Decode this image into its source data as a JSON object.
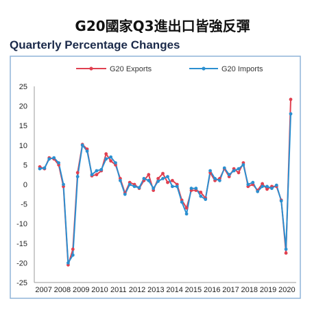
{
  "header": {
    "title": "G20國家Q3進出口皆強反彈",
    "subtitle": "Quarterly Percentage Changes"
  },
  "colors": {
    "exports": "#e04050",
    "imports": "#2b8fd0",
    "frame": "#8fb3d9",
    "grid": "#e3e3e3"
  },
  "chart_data": {
    "type": "line",
    "title": "Quarterly Percentage Changes",
    "xlabel": "",
    "ylabel": "",
    "ylim": [
      -25,
      25
    ],
    "yticks": [
      "25",
      "20",
      "15",
      "10",
      "5",
      "0",
      "-5",
      "-10",
      "-15",
      "-20",
      "-25"
    ],
    "xticks": [
      "2007",
      "2008",
      "2009",
      "2010",
      "2011",
      "2012",
      "2013",
      "2014",
      "2015",
      "2016",
      "2017",
      "2018",
      "2019",
      "2020"
    ],
    "legend_position": "top",
    "grid": false,
    "series": [
      {
        "name": "G20 Exports",
        "values": [
          4.5,
          4.0,
          6.8,
          6.5,
          5.0,
          -0.5,
          -20.5,
          -16.5,
          3.0,
          10.2,
          9.0,
          2.2,
          2.5,
          3.5,
          7.8,
          6.0,
          5.0,
          1.5,
          -2.2,
          0.5,
          0.0,
          -1.0,
          1.0,
          2.5,
          -1.5,
          1.5,
          2.8,
          0.5,
          1.0,
          0.0,
          -4.0,
          -6.0,
          -1.5,
          -1.5,
          -2.0,
          -3.5,
          3.0,
          1.0,
          1.5,
          4.0,
          2.0,
          4.0,
          3.0,
          5.5,
          -0.5,
          0.0,
          -1.5,
          0.2,
          -1.2,
          -0.5,
          -0.5,
          -4.0,
          -17.5,
          21.7
        ]
      },
      {
        "name": "G20 Imports",
        "values": [
          4.0,
          4.2,
          6.5,
          6.8,
          5.5,
          0.0,
          -20.0,
          -18.0,
          2.0,
          10.0,
          8.5,
          2.5,
          3.5,
          3.8,
          6.5,
          7.0,
          5.5,
          1.0,
          -2.5,
          0.0,
          -0.5,
          -0.8,
          1.5,
          1.0,
          -1.0,
          0.8,
          1.5,
          2.0,
          -0.5,
          -0.5,
          -4.5,
          -7.5,
          -1.0,
          -1.0,
          -3.0,
          -3.8,
          3.5,
          1.5,
          1.0,
          4.2,
          2.5,
          3.5,
          4.0,
          5.0,
          0.0,
          0.5,
          -1.8,
          -0.5,
          -0.5,
          -1.0,
          -0.2,
          -4.2,
          -16.5,
          18.0
        ]
      }
    ]
  }
}
